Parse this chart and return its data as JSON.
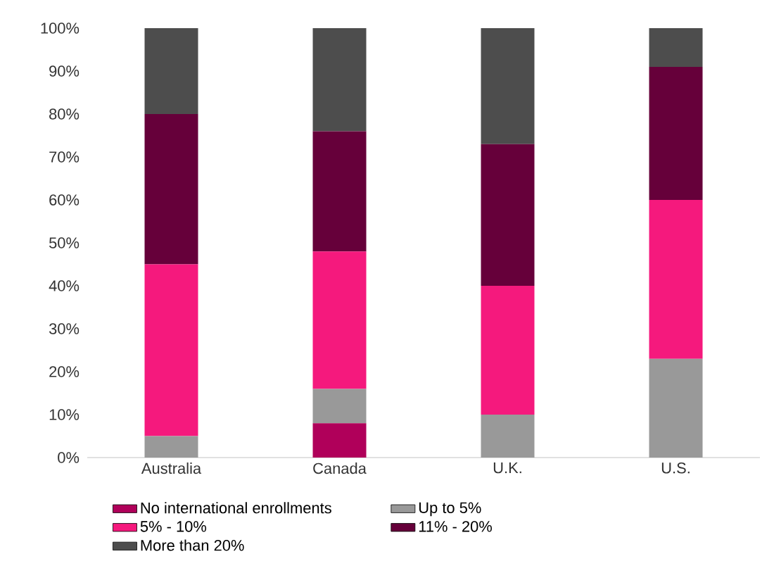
{
  "chart_data": {
    "type": "bar",
    "stacked": true,
    "categories": [
      "Australia",
      "Canada",
      "U.K.",
      "U.S."
    ],
    "ylim": [
      0,
      100
    ],
    "yticks": [
      {
        "value": 0,
        "label": "0%"
      },
      {
        "value": 10,
        "label": "10%"
      },
      {
        "value": 20,
        "label": "20%"
      },
      {
        "value": 30,
        "label": "30%"
      },
      {
        "value": 40,
        "label": "40%"
      },
      {
        "value": 50,
        "label": "50%"
      },
      {
        "value": 60,
        "label": "60%"
      },
      {
        "value": 70,
        "label": "70%"
      },
      {
        "value": 80,
        "label": "80%"
      },
      {
        "value": 90,
        "label": "90%"
      },
      {
        "value": 100,
        "label": "100%"
      }
    ],
    "legend": "bottom",
    "series": [
      {
        "name": "No international enrollments",
        "color": "#b0005a",
        "values": [
          0,
          8,
          0,
          0
        ]
      },
      {
        "name": "Up to 5%",
        "color": "#999999",
        "values": [
          5,
          8,
          10,
          23
        ]
      },
      {
        "name": "5% - 10%",
        "color": "#f5197d",
        "values": [
          40,
          32,
          30,
          37
        ]
      },
      {
        "name": "11% - 20%",
        "color": "#66003a",
        "values": [
          35,
          28,
          33,
          31
        ]
      },
      {
        "name": "More than 20%",
        "color": "#4d4d4d",
        "values": [
          20,
          24,
          27,
          9
        ]
      }
    ]
  }
}
